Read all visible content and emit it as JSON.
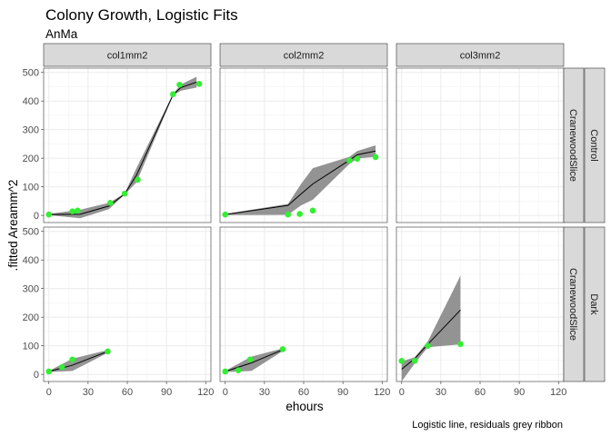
{
  "chart_data": {
    "type": "line",
    "title": "Colony Growth, Logistic Fits",
    "subtitle": "AnMa",
    "xlabel": "ehours",
    "ylabel": ".fitted Areamm^2",
    "caption": "Logistic line, residuals grey ribbon",
    "xlim": [
      -4,
      124
    ],
    "ylim": [
      -25,
      515
    ],
    "x_ticks": [
      "0",
      "30",
      "60",
      "90",
      "120"
    ],
    "y_ticks": [
      "0",
      "100",
      "200",
      "300",
      "400",
      "500"
    ],
    "x_tick_values": [
      0,
      30,
      60,
      90,
      120
    ],
    "y_tick_values": [
      0,
      100,
      200,
      300,
      400,
      500
    ],
    "grid": true,
    "columns": [
      "col1mm2",
      "col2mm2",
      "col3mm2"
    ],
    "row_facets": [
      {
        "label": "CranewoodSlice",
        "group": "Control"
      },
      {
        "label": "CranewoodSlice",
        "group": "Dark"
      }
    ],
    "colors": {
      "points": "#33ee33",
      "line": "#000000",
      "ribbon": "#808080",
      "strip": "#d9d9d9",
      "panel_grid_major": "#ebebeb"
    },
    "panels": [
      {
        "row": 0,
        "col": 0,
        "fit": [
          [
            0,
            3
          ],
          [
            24,
            4
          ],
          [
            46,
            33
          ],
          [
            58,
            75
          ],
          [
            67,
            140
          ],
          [
            95,
            422
          ],
          [
            101,
            447
          ],
          [
            113,
            466
          ]
        ],
        "ribbon_upper": [
          [
            0,
            5
          ],
          [
            24,
            20
          ],
          [
            46,
            44
          ],
          [
            58,
            77
          ],
          [
            67,
            165
          ],
          [
            95,
            425
          ],
          [
            101,
            458
          ],
          [
            113,
            485
          ]
        ],
        "ribbon_lower": [
          [
            0,
            1
          ],
          [
            24,
            -10
          ],
          [
            46,
            22
          ],
          [
            58,
            73
          ],
          [
            67,
            115
          ],
          [
            95,
            419
          ],
          [
            101,
            436
          ],
          [
            113,
            447
          ]
        ],
        "points": [
          [
            0,
            3
          ],
          [
            18,
            14
          ],
          [
            22,
            17
          ],
          [
            47,
            44
          ],
          [
            58,
            76
          ],
          [
            68,
            125
          ],
          [
            95,
            424
          ],
          [
            100,
            457
          ],
          [
            115,
            460
          ]
        ]
      },
      {
        "row": 0,
        "col": 1,
        "fit": [
          [
            0,
            3
          ],
          [
            48,
            35
          ],
          [
            58,
            75
          ],
          [
            67,
            110
          ],
          [
            95,
            193
          ],
          [
            101,
            212
          ],
          [
            115,
            225
          ]
        ],
        "ribbon_upper": [
          [
            0,
            5
          ],
          [
            48,
            40
          ],
          [
            58,
            110
          ],
          [
            67,
            165
          ],
          [
            95,
            205
          ],
          [
            101,
            225
          ],
          [
            115,
            245
          ]
        ],
        "ribbon_lower": [
          [
            0,
            1
          ],
          [
            48,
            2
          ],
          [
            58,
            35
          ],
          [
            67,
            55
          ],
          [
            95,
            180
          ],
          [
            101,
            199
          ],
          [
            115,
            205
          ]
        ],
        "points": [
          [
            0,
            3
          ],
          [
            48,
            3
          ],
          [
            57,
            5
          ],
          [
            67,
            17
          ],
          [
            95,
            192
          ],
          [
            101,
            198
          ],
          [
            115,
            204
          ]
        ]
      },
      {
        "row": 0,
        "col": 2,
        "fit": [],
        "ribbon_upper": [],
        "ribbon_lower": [],
        "points": []
      },
      {
        "row": 1,
        "col": 0,
        "fit": [
          [
            0,
            10
          ],
          [
            18,
            32
          ],
          [
            45,
            80
          ]
        ],
        "ribbon_upper": [
          [
            0,
            12
          ],
          [
            18,
            55
          ],
          [
            45,
            85
          ]
        ],
        "ribbon_lower": [
          [
            0,
            8
          ],
          [
            18,
            12
          ],
          [
            45,
            75
          ]
        ],
        "points": [
          [
            0,
            10
          ],
          [
            10,
            25
          ],
          [
            18,
            52
          ],
          [
            45,
            80
          ]
        ]
      },
      {
        "row": 1,
        "col": 1,
        "fit": [
          [
            0,
            10
          ],
          [
            20,
            40
          ],
          [
            45,
            88
          ]
        ],
        "ribbon_upper": [
          [
            0,
            12
          ],
          [
            20,
            62
          ],
          [
            45,
            92
          ]
        ],
        "ribbon_lower": [
          [
            0,
            8
          ],
          [
            20,
            12
          ],
          [
            45,
            84
          ]
        ],
        "points": [
          [
            0,
            10
          ],
          [
            10,
            14
          ],
          [
            19,
            52
          ],
          [
            44,
            88
          ]
        ]
      },
      {
        "row": 1,
        "col": 2,
        "fit": [
          [
            0,
            18
          ],
          [
            10,
            55
          ],
          [
            20,
            105
          ],
          [
            45,
            225
          ]
        ],
        "ribbon_upper": [
          [
            0,
            45
          ],
          [
            10,
            60
          ],
          [
            20,
            115
          ],
          [
            45,
            345
          ]
        ],
        "ribbon_lower": [
          [
            0,
            -25
          ],
          [
            10,
            38
          ],
          [
            20,
            95
          ],
          [
            45,
            105
          ]
        ],
        "points": [
          [
            0,
            47
          ],
          [
            10,
            47
          ],
          [
            20,
            100
          ],
          [
            45,
            106
          ]
        ]
      }
    ]
  }
}
